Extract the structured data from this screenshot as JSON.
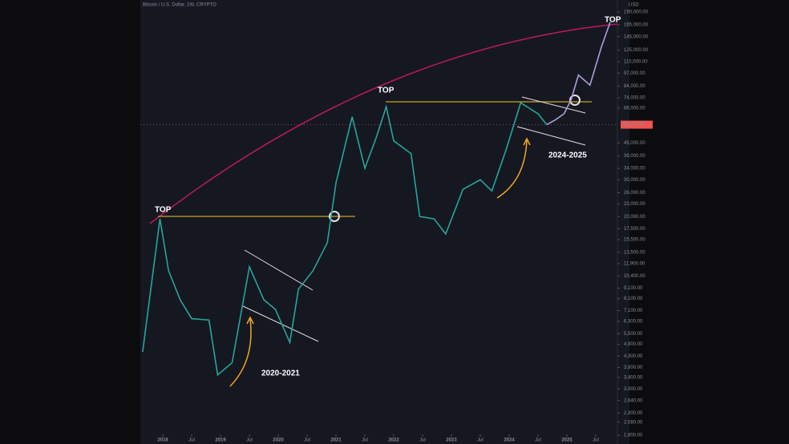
{
  "chart_data": {
    "type": "line",
    "title": "Bitcoin / U.S. Dollar, 1W, CRYPTO",
    "y_unit": "USD",
    "log_scale": true,
    "x": [
      2017.65,
      2017.95,
      2018.1,
      2018.3,
      2018.5,
      2018.8,
      2018.95,
      2019.2,
      2019.5,
      2019.75,
      2019.95,
      2020.2,
      2020.35,
      2020.6,
      2020.85,
      2021.0,
      2021.28,
      2021.5,
      2021.7,
      2021.87,
      2022.0,
      2022.3,
      2022.45,
      2022.7,
      2022.9,
      2023.2,
      2023.5,
      2023.7,
      2023.95,
      2024.2,
      2024.5,
      2024.65,
      2024.8,
      2024.95,
      2025.07,
      2025.2,
      2025.4,
      2025.6,
      2025.75
    ],
    "series": [
      {
        "color": "#26a69a",
        "values": [
          4500,
          19500,
          11000,
          8000,
          6500,
          6400,
          3500,
          4000,
          11500,
          8000,
          7200,
          5000,
          9000,
          11000,
          15000,
          29000,
          60000,
          34000,
          48000,
          67000,
          46000,
          40000,
          20000,
          19500,
          16500,
          27000,
          30000,
          26500,
          42000,
          70000,
          62000,
          55000,
          null,
          null,
          null,
          null,
          null,
          null,
          null
        ]
      },
      {
        "color": "#b39ddb",
        "values": [
          null,
          null,
          null,
          null,
          null,
          null,
          null,
          null,
          null,
          null,
          null,
          null,
          null,
          null,
          null,
          null,
          null,
          null,
          null,
          null,
          null,
          null,
          null,
          null,
          null,
          null,
          null,
          null,
          null,
          null,
          null,
          55000,
          58000,
          62000,
          72000,
          95000,
          85000,
          130000,
          170000
        ]
      }
    ],
    "current_price_label": "55,217.00",
    "annotations": [
      "TOP",
      "TOP",
      "TOP",
      "2020-2021",
      "2024-2025"
    ],
    "xlim": [
      2017.61,
      2025.875
    ],
    "xticks": [
      2018,
      {
        "value": 2018.5,
        "label": "Jul"
      },
      2019,
      {
        "value": 2019.5,
        "label": "Jul"
      },
      2020,
      {
        "value": 2020.5,
        "label": "Jul"
      },
      2021,
      {
        "value": 2021.5,
        "label": "Jul"
      },
      2022,
      {
        "value": 2022.5,
        "label": "Jul"
      },
      2023,
      {
        "value": 2023.5,
        "label": "Jul"
      },
      2024,
      {
        "value": 2024.5,
        "label": "Jul"
      },
      2025,
      {
        "value": 2025.5,
        "label": "Jul"
      }
    ],
    "ylim": [
      217000,
      1770
    ],
    "yticks": [
      {
        "value": 190000,
        "label": "190,000.00"
      },
      {
        "value": 165000,
        "label": "165,000.00"
      },
      {
        "value": 145000,
        "label": "145,000.00"
      },
      {
        "value": 125000,
        "label": "125,000.00"
      },
      {
        "value": 110000,
        "label": "110,000.00"
      },
      {
        "value": 97000,
        "label": "97,000.00"
      },
      {
        "value": 84000,
        "label": "84,000.00"
      },
      {
        "value": 74000,
        "label": "74,000.00"
      },
      {
        "value": 66000,
        "label": "66,000.00"
      },
      {
        "value": 45000,
        "label": "45,000.00"
      },
      {
        "value": 39000,
        "label": "39,000.00"
      },
      {
        "value": 34000,
        "label": "34,000.00"
      },
      {
        "value": 30000,
        "label": "30,000.00"
      },
      {
        "value": 26000,
        "label": "26,000.00"
      },
      {
        "value": 23000,
        "label": "23,000.00"
      },
      {
        "value": 20000,
        "label": "20,000.00"
      },
      {
        "value": 17500,
        "label": "17,500.00"
      },
      {
        "value": 15500,
        "label": "15,500.00"
      },
      {
        "value": 13500,
        "label": "13,500.00"
      },
      {
        "value": 11900,
        "label": "11,900.00"
      },
      {
        "value": 10400,
        "label": "10,400.00"
      },
      {
        "value": 9100,
        "label": "9,100.00"
      },
      {
        "value": 8100,
        "label": "8,100.00"
      },
      {
        "value": 7100,
        "label": "7,100.00"
      },
      {
        "value": 6300,
        "label": "6,300.00"
      },
      {
        "value": 5500,
        "label": "5,500.00"
      },
      {
        "value": 4900,
        "label": "4,900.00"
      },
      {
        "value": 4300,
        "label": "4,300.00"
      },
      {
        "value": 3800,
        "label": "3,800.00"
      },
      {
        "value": 3400,
        "label": "3,400.00"
      },
      {
        "value": 3000,
        "label": "3,000.00"
      },
      {
        "value": 2640,
        "label": "2,640.00"
      },
      {
        "value": 2300,
        "label": "2,300.00"
      },
      {
        "value": 2080,
        "label": "2,080.00"
      },
      {
        "value": 1800,
        "label": "1,800.00"
      }
    ]
  }
}
